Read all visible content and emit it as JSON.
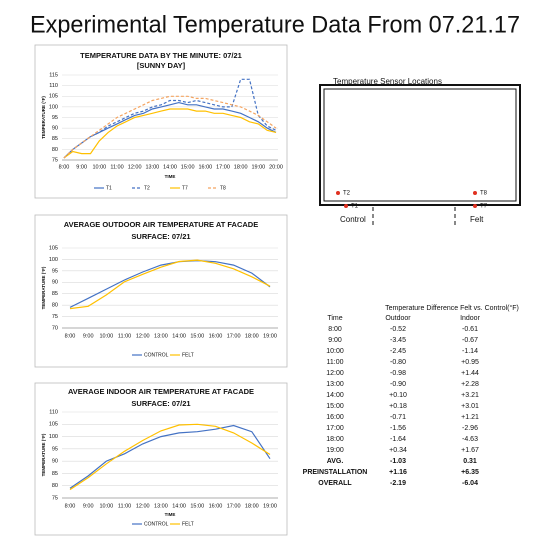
{
  "title": "Experimental Temperature Data From 07.21.17",
  "chart_data": [
    {
      "type": "line",
      "title": "TEMPERATURE DATA BY THE MINUTE: 07/21",
      "subtitle": "[SUNNY DAY]",
      "xlabel": "TIME",
      "ylabel": "TEMPERATURE (°F)",
      "categories": [
        "8:00",
        null,
        "9:00",
        null,
        "10:00",
        null,
        "11:00",
        null,
        "12:00",
        null,
        "13:00",
        null,
        "14:00",
        null,
        "15:00",
        null,
        "16:00",
        null,
        "17:00",
        null,
        "18:00",
        null,
        "19:00",
        null,
        "20:00"
      ],
      "series": [
        {
          "name": "T1",
          "color": "#4472c4",
          "style": "solid",
          "values": [
            76,
            80,
            83,
            86,
            88,
            90,
            92,
            94,
            96,
            97,
            99,
            100,
            101,
            102,
            101,
            101,
            100,
            99,
            99,
            98,
            97,
            95,
            93,
            90,
            88
          ]
        },
        {
          "name": "T2",
          "color": "#4472c4",
          "style": "dashed",
          "values": [
            76,
            80,
            83,
            86,
            88,
            91,
            93,
            95,
            97,
            98,
            100,
            101,
            103,
            103,
            102,
            103,
            102,
            101,
            100,
            100,
            113,
            113,
            96,
            91,
            89
          ]
        },
        {
          "name": "T7",
          "color": "#ffc000",
          "style": "solid",
          "values": [
            76,
            79,
            78,
            78,
            84,
            88,
            91,
            93,
            95,
            96,
            97,
            98,
            99,
            99,
            99,
            98,
            98,
            97,
            97,
            96,
            95,
            93,
            92,
            89,
            88
          ]
        },
        {
          "name": "T8",
          "color": "#f4a460",
          "style": "dashed",
          "values": [
            76,
            80,
            83,
            86,
            89,
            92,
            95,
            97,
            99,
            101,
            103,
            104,
            105,
            105,
            105,
            104,
            104,
            103,
            102,
            101,
            100,
            98,
            96,
            93,
            90
          ]
        }
      ],
      "ylim": [
        75,
        115
      ],
      "yticks": [
        75,
        80,
        85,
        90,
        95,
        100,
        105,
        110,
        115
      ],
      "grid": true,
      "legend": "bottom"
    },
    {
      "type": "line",
      "title": "AVERAGE OUTDOOR AIR TEMPERATURE AT FACADE",
      "subtitle": "SURFACE: 07/21",
      "ylabel": "TEMPERATURE (°F)",
      "categories": [
        "8:00",
        "9:00",
        "10:00",
        "11:00",
        "12:00",
        "13:00",
        "14:00",
        "15:00",
        "16:00",
        "17:00",
        "18:00",
        "19:00"
      ],
      "series": [
        {
          "name": "CONTROL",
          "color": "#4472c4",
          "style": "solid",
          "values": [
            79,
            83,
            87,
            91,
            94.5,
            97.5,
            99,
            99.5,
            99,
            97.5,
            94,
            88
          ]
        },
        {
          "name": "FELT",
          "color": "#ffc000",
          "style": "solid",
          "values": [
            78.5,
            79.5,
            84.5,
            90.2,
            93.5,
            96.6,
            99.1,
            99.7,
            98.3,
            95.9,
            92.4,
            88.3
          ]
        }
      ],
      "ylim": [
        70,
        105
      ],
      "yticks": [
        70,
        75,
        80,
        85,
        90,
        95,
        100,
        105
      ],
      "grid": true,
      "legend": "bottom"
    },
    {
      "type": "line",
      "title": "AVERAGE INDOOR AIR TEMPERATURE AT FACADE",
      "subtitle": "SURFACE: 07/21",
      "xlabel": "TIME",
      "ylabel": "TEMPERATURE (°F)",
      "categories": [
        "8:00",
        "9:00",
        "10:00",
        "11:00",
        "12:00",
        "13:00",
        "14:00",
        "15:00",
        "16:00",
        "17:00",
        "18:00",
        "19:00"
      ],
      "series": [
        {
          "name": "CONTROL",
          "color": "#4472c4",
          "style": "solid",
          "values": [
            79,
            84,
            90,
            93,
            97,
            100,
            101.5,
            102,
            103,
            104.5,
            102,
            91
          ]
        },
        {
          "name": "FELT",
          "color": "#ffc000",
          "style": "solid",
          "values": [
            78.4,
            83.3,
            88.9,
            94,
            98.4,
            102.3,
            104.7,
            105,
            104.2,
            101.5,
            97.4,
            92.7
          ]
        }
      ],
      "ylim": [
        75,
        110
      ],
      "yticks": [
        75,
        80,
        85,
        90,
        95,
        100,
        105,
        110
      ],
      "grid": true,
      "legend": "bottom"
    }
  ],
  "diagram": {
    "title": "Temperature Sensor Locations",
    "sensors": [
      "T2",
      "T1",
      "T8",
      "T7"
    ],
    "labels": [
      "Control",
      "Felt"
    ]
  },
  "table": {
    "title": "Temperature Difference Felt vs. Control(°F)",
    "header": [
      "Time",
      "Outdoor",
      "Indoor"
    ],
    "rows": [
      [
        "8:00",
        "-0.52",
        "-0.61"
      ],
      [
        "9:00",
        "-3.45",
        "-0.67"
      ],
      [
        "10:00",
        "-2.45",
        "-1.14"
      ],
      [
        "11:00",
        "-0.80",
        "+0.95"
      ],
      [
        "12:00",
        "-0.98",
        "+1.44"
      ],
      [
        "13:00",
        "-0.90",
        "+2.28"
      ],
      [
        "14:00",
        "+0.10",
        "+3.21"
      ],
      [
        "15:00",
        "+0.18",
        "+3.01"
      ],
      [
        "16:00",
        "-0.71",
        "+1.21"
      ],
      [
        "17:00",
        "-1.56",
        "-2.96"
      ],
      [
        "18:00",
        "-1.64",
        "-4.63"
      ],
      [
        "19:00",
        "+0.34",
        "+1.67"
      ]
    ],
    "summary": [
      [
        "AVG.",
        "-1.03",
        "0.31"
      ],
      [
        "PREINSTALLATION",
        "+1.16",
        "+6.35"
      ],
      [
        "OVERALL",
        "-2.19",
        "-6.04"
      ]
    ]
  }
}
